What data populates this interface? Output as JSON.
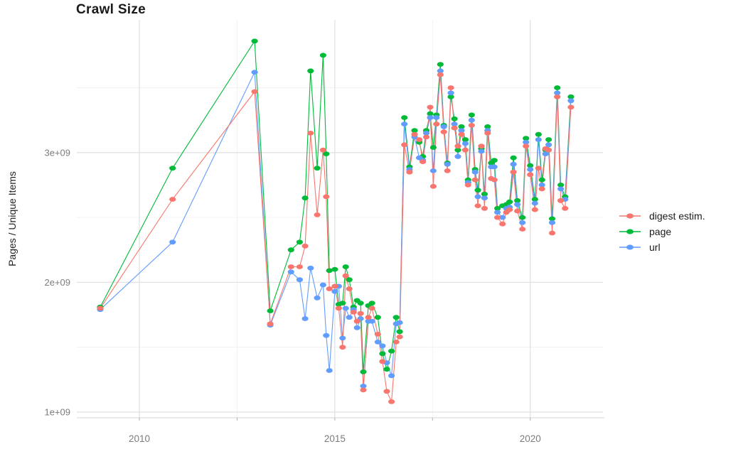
{
  "title": "Crawl Size",
  "axes": {
    "y_label": "Pages / Unique Items",
    "y_ticks": [
      {
        "value": 1,
        "label": "1e+09"
      },
      {
        "value": 2,
        "label": "2e+09"
      },
      {
        "value": 3,
        "label": "3e+09"
      }
    ],
    "y_minor": [
      1.5,
      2.5,
      3.5
    ],
    "x_ticks": [
      {
        "value": 2010,
        "label": "2010"
      },
      {
        "value": 2015,
        "label": "2015"
      },
      {
        "value": 2020,
        "label": "2020"
      }
    ],
    "x_minor": [
      2012.5,
      2017.5
    ]
  },
  "legend": {
    "items": [
      {
        "label": "digest estim.",
        "color": "#F8766D",
        "series": "digest"
      },
      {
        "label": "page",
        "color": "#00BA38",
        "series": "page"
      },
      {
        "label": "url",
        "color": "#619CFF",
        "series": "url"
      }
    ]
  },
  "style": {
    "grid_major_color": "#e2e2e2",
    "grid_minor_color": "#f0f0f0",
    "axis_line_color": "#d6d6d6",
    "tick_mark_color": "#b0b0b0",
    "tick_label_color": "#7c7c7c",
    "background": "#ffffff"
  },
  "chart_data": {
    "type": "line",
    "title": "Crawl Size",
    "xlabel": "",
    "ylabel": "Pages / Unique Items",
    "y_scale": 1000000000,
    "y_unit_note": "values in units of 1e+09",
    "xlim": [
      2008.4,
      2021.86
    ],
    "ylim": [
      0.956,
      4.023
    ],
    "grid": true,
    "legend_position": "right",
    "x": [
      2009.0,
      2010.85,
      2012.95,
      2013.35,
      2013.88,
      2014.1,
      2014.24,
      2014.38,
      2014.55,
      2014.7,
      2014.78,
      2014.86,
      2015.0,
      2015.1,
      2015.2,
      2015.28,
      2015.37,
      2015.48,
      2015.57,
      2015.66,
      2015.73,
      2015.86,
      2015.95,
      2016.1,
      2016.22,
      2016.33,
      2016.45,
      2016.57,
      2016.66,
      2016.78,
      2016.91,
      2017.04,
      2017.16,
      2017.25,
      2017.34,
      2017.44,
      2017.52,
      2017.6,
      2017.7,
      2017.79,
      2017.88,
      2017.97,
      2018.06,
      2018.15,
      2018.24,
      2018.34,
      2018.41,
      2018.5,
      2018.59,
      2018.66,
      2018.75,
      2018.83,
      2018.91,
      2019.0,
      2019.08,
      2019.16,
      2019.29,
      2019.39,
      2019.47,
      2019.57,
      2019.67,
      2019.8,
      2019.89,
      2020.0,
      2020.12,
      2020.21,
      2020.3,
      2020.39,
      2020.47,
      2020.56,
      2020.69,
      2020.78,
      2020.89,
      2021.04
    ],
    "series": [
      {
        "name": "digest estim.",
        "color": "#F8766D",
        "values": [
          1.8,
          2.64,
          3.47,
          1.68,
          2.12,
          2.12,
          2.28,
          3.15,
          2.52,
          3.02,
          2.66,
          1.95,
          1.97,
          1.8,
          1.5,
          2.05,
          1.95,
          1.77,
          1.7,
          1.76,
          1.17,
          1.73,
          1.8,
          1.6,
          1.39,
          1.16,
          1.08,
          1.54,
          1.58,
          3.06,
          2.85,
          3.14,
          3.1,
          2.93,
          3.12,
          3.35,
          2.74,
          3.22,
          3.6,
          3.16,
          2.86,
          3.5,
          3.19,
          3.05,
          3.14,
          3.02,
          2.75,
          3.21,
          2.79,
          2.59,
          3.05,
          2.57,
          3.15,
          2.8,
          2.79,
          2.5,
          2.45,
          2.54,
          2.56,
          2.85,
          2.55,
          2.41,
          3.05,
          2.83,
          2.56,
          2.88,
          2.72,
          3.03,
          3.02,
          2.38,
          3.43,
          2.63,
          2.57,
          3.35
        ]
      },
      {
        "name": "page",
        "color": "#00BA38",
        "values": [
          1.81,
          2.88,
          3.86,
          1.78,
          2.25,
          2.31,
          2.65,
          3.63,
          2.88,
          3.75,
          2.99,
          2.09,
          2.1,
          1.83,
          1.84,
          2.12,
          2.02,
          1.81,
          1.86,
          1.84,
          1.31,
          1.82,
          1.84,
          1.73,
          1.45,
          1.33,
          1.47,
          1.73,
          1.62,
          3.27,
          2.89,
          3.17,
          3.08,
          2.97,
          3.17,
          3.3,
          3.04,
          3.29,
          3.68,
          3.21,
          2.92,
          3.43,
          3.26,
          3.02,
          3.2,
          3.1,
          2.79,
          3.29,
          2.87,
          2.71,
          3.03,
          2.68,
          3.2,
          2.92,
          2.94,
          2.57,
          2.59,
          2.6,
          2.62,
          2.96,
          2.63,
          2.5,
          3.11,
          2.9,
          2.64,
          3.14,
          2.79,
          3.02,
          3.1,
          2.49,
          3.5,
          2.75,
          2.66,
          3.43
        ]
      },
      {
        "name": "url",
        "color": "#619CFF",
        "values": [
          1.79,
          2.31,
          3.62,
          1.67,
          2.08,
          2.02,
          1.72,
          2.11,
          1.88,
          1.98,
          1.59,
          1.32,
          1.93,
          1.97,
          1.57,
          1.8,
          1.73,
          1.79,
          1.65,
          1.72,
          1.2,
          1.7,
          1.7,
          1.54,
          1.51,
          1.38,
          1.28,
          1.68,
          1.69,
          3.22,
          2.87,
          3.12,
          2.96,
          2.94,
          3.15,
          3.27,
          2.86,
          3.27,
          3.63,
          3.2,
          2.91,
          3.46,
          3.22,
          2.97,
          3.17,
          3.07,
          2.77,
          3.25,
          2.85,
          2.66,
          3.01,
          2.65,
          3.17,
          2.89,
          2.89,
          2.54,
          2.5,
          2.57,
          2.58,
          2.91,
          2.6,
          2.46,
          3.08,
          2.87,
          2.61,
          3.1,
          2.75,
          2.99,
          3.06,
          2.46,
          3.46,
          2.72,
          2.64,
          3.4
        ]
      }
    ]
  }
}
